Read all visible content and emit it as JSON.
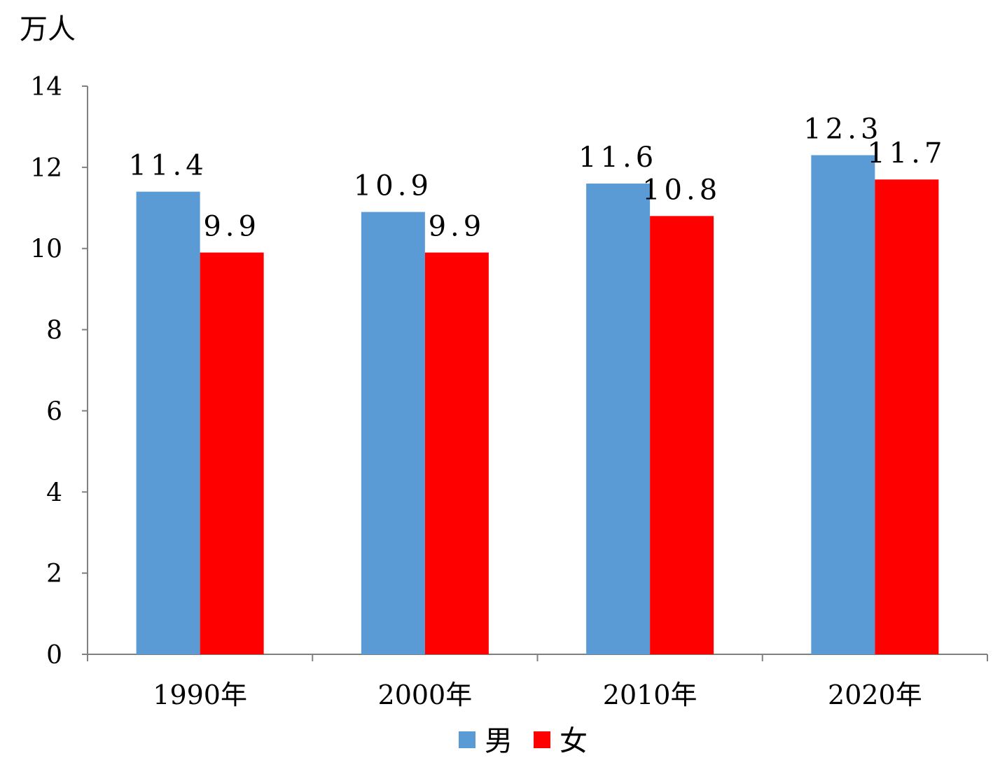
{
  "chart_data": {
    "type": "bar",
    "ylabel": "万人",
    "ylim": [
      0,
      14
    ],
    "yticks": [
      "0",
      "2",
      "4",
      "6",
      "8",
      "10",
      "12",
      "14"
    ],
    "categories": [
      "1990年",
      "2000年",
      "2010年",
      "2020年"
    ],
    "series": [
      {
        "name": "男",
        "color": "#5B9BD5",
        "values": [
          11.4,
          10.9,
          11.6,
          12.3
        ],
        "labels": [
          "11.4",
          "10.9",
          "11.6",
          "12.3"
        ]
      },
      {
        "name": "女",
        "color": "#FF0000",
        "values": [
          9.9,
          9.9,
          10.8,
          11.7
        ],
        "labels": [
          "9.9",
          "9.9",
          "10.8",
          "11.7"
        ]
      }
    ],
    "legend": "bottom",
    "grid": false
  }
}
